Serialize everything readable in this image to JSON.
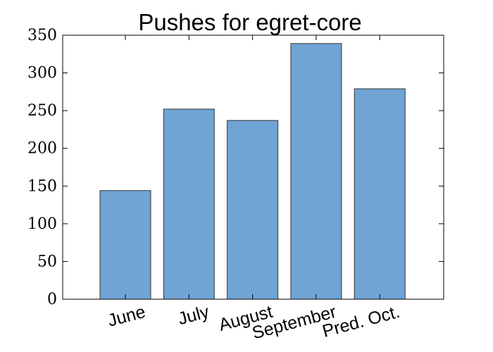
{
  "chart_data": {
    "type": "bar",
    "title": "Pushes for egret-core",
    "xlabel": "",
    "ylabel": "",
    "categories": [
      "June",
      "July",
      "August",
      "September",
      "Pred. Oct."
    ],
    "values": [
      144,
      252,
      237,
      339,
      279
    ],
    "ylim": [
      0,
      350
    ],
    "yticks": [
      "0",
      "50",
      "100",
      "150",
      "200",
      "250",
      "300",
      "350"
    ],
    "grid": false,
    "legend": "none",
    "bar_color": "#6fa4d4",
    "bar_edge_color": "#333333"
  }
}
